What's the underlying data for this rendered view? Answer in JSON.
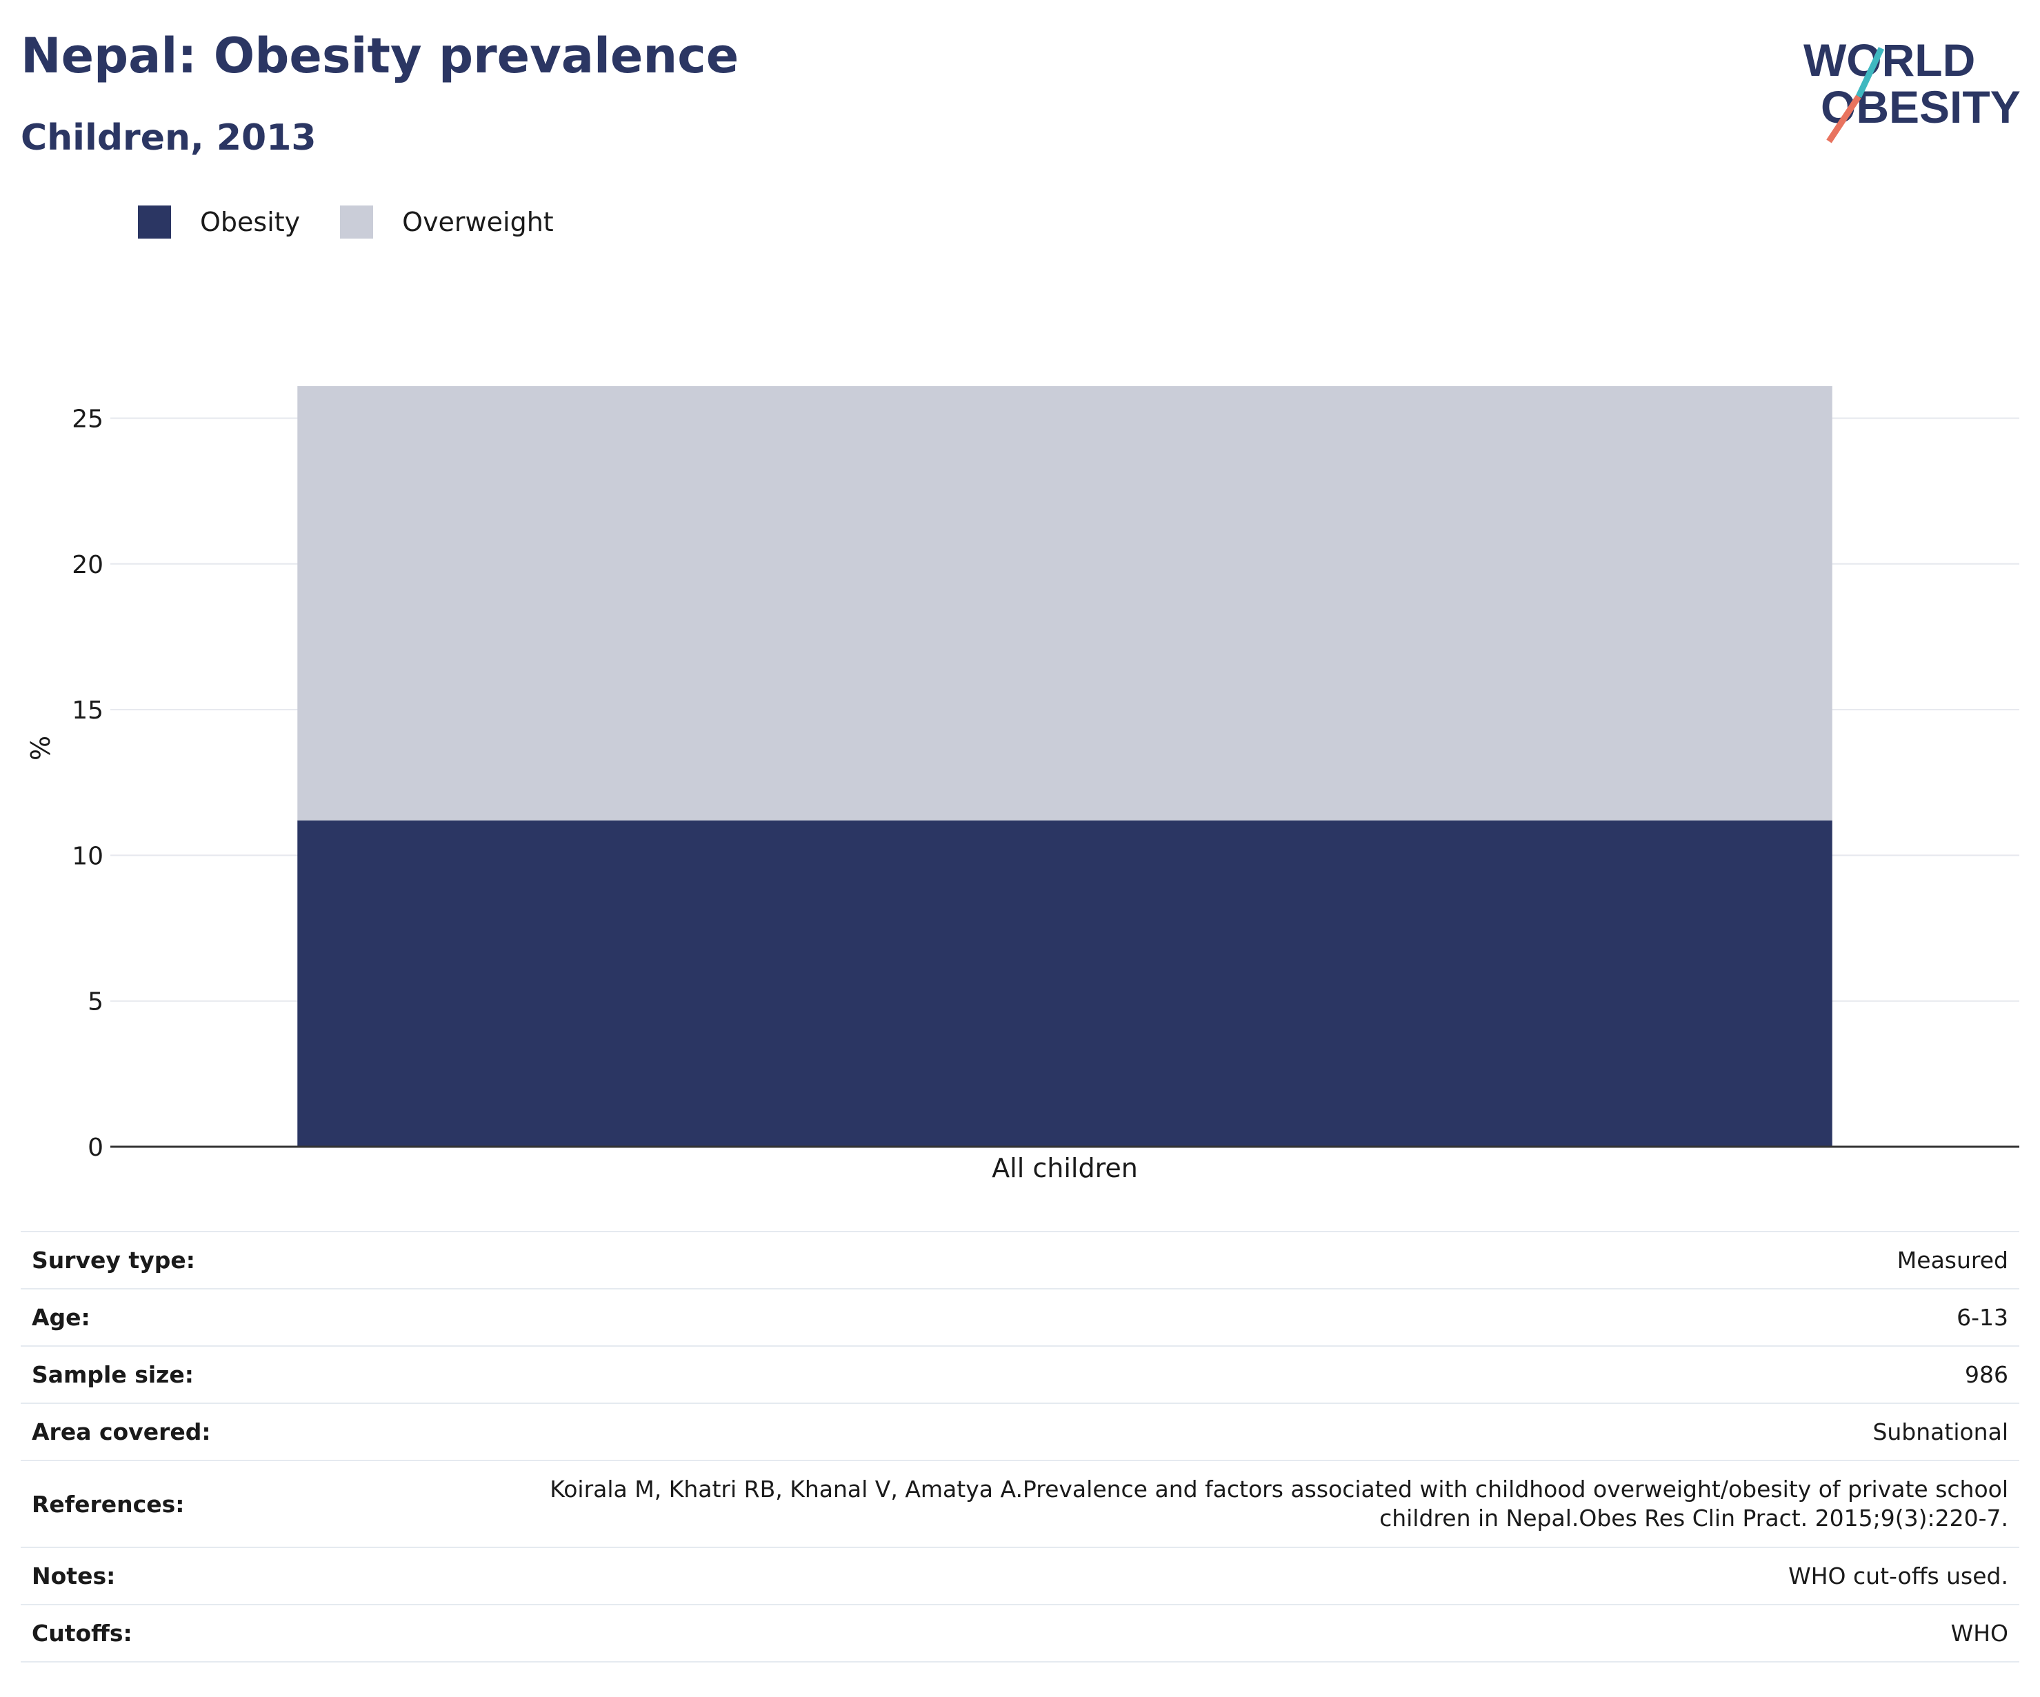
{
  "header": {
    "title": "Nepal: Obesity prevalence",
    "subtitle": "Children, 2013"
  },
  "logo": {
    "line1": "WORLD",
    "line2": "OBESITY",
    "colors": {
      "text": "#2b3663",
      "teal": "#3fb8c0",
      "coral": "#e8735f"
    }
  },
  "colors": {
    "obesity": "#2b3663",
    "overweight": "#cacdd8",
    "grid": "#e6e8ee",
    "axis": "#333333",
    "text": "#2b3663"
  },
  "chart_data": {
    "type": "bar",
    "stacked": true,
    "categories": [
      "All children"
    ],
    "series": [
      {
        "name": "Obesity",
        "values": [
          11.2
        ],
        "color": "#2b3663"
      },
      {
        "name": "Overweight",
        "values": [
          14.9
        ],
        "color": "#cacdd8"
      }
    ],
    "title": "Nepal: Obesity prevalence",
    "subtitle": "Children, 2013",
    "xlabel": "",
    "ylabel": "%",
    "ylim": [
      0,
      26.1
    ],
    "yticks": [
      0,
      5,
      10,
      15,
      20,
      25
    ],
    "grid": true,
    "legend": "top-left"
  },
  "details": [
    {
      "label": "Survey type:",
      "value": [
        "Measured"
      ]
    },
    {
      "label": "Age:",
      "value": [
        "6-13"
      ]
    },
    {
      "label": "Sample size:",
      "value": [
        "986"
      ]
    },
    {
      "label": "Area covered:",
      "value": [
        "Subnational"
      ]
    },
    {
      "label": "References:",
      "value": [
        "Koirala M, Khatri RB, Khanal V, Amatya A.Prevalence and factors associated with childhood overweight/obesity of private school",
        "children in Nepal.Obes Res Clin Pract. 2015;9(3):220-7."
      ]
    },
    {
      "label": "Notes:",
      "value": [
        "WHO cut-offs used."
      ]
    },
    {
      "label": "Cutoffs:",
      "value": [
        "WHO"
      ]
    }
  ]
}
